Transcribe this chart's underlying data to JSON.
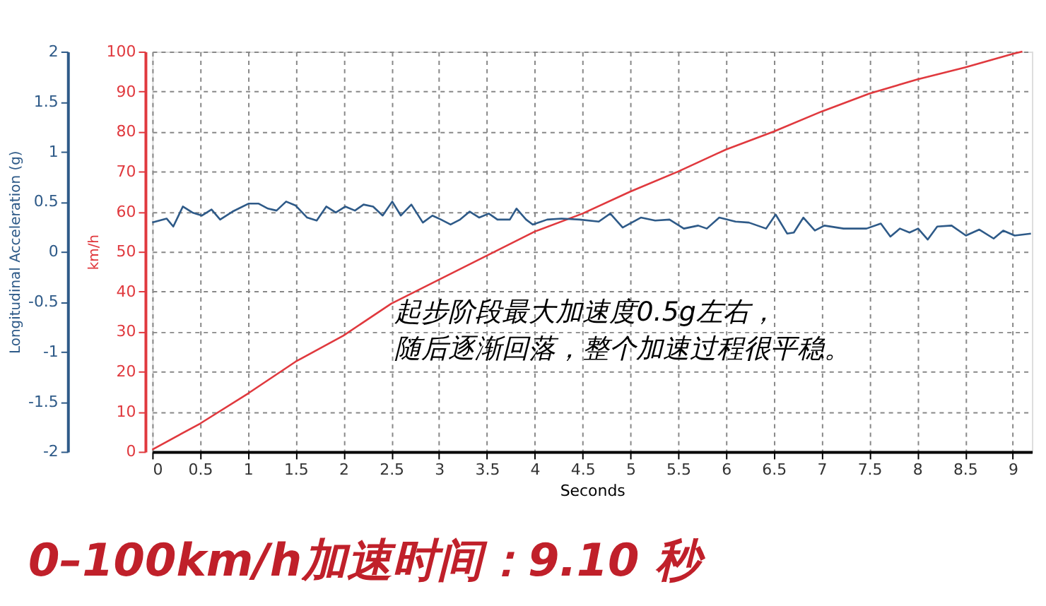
{
  "chart_data": {
    "type": "line",
    "xlabel": "Seconds",
    "ylabel": "km/h",
    "y2label": "Longitudinal Acceleration (g)",
    "xlim": [
      0,
      9.2
    ],
    "xticks": [
      0,
      0.5,
      1,
      1.5,
      2,
      2.5,
      3,
      3.5,
      4,
      4.5,
      5,
      5.5,
      6,
      6.5,
      7,
      7.5,
      8,
      8.5,
      9
    ],
    "ylim": [
      0,
      100
    ],
    "yticks": [
      0,
      10,
      20,
      30,
      40,
      50,
      60,
      70,
      80,
      90,
      100
    ],
    "y2lim": [
      -2,
      2
    ],
    "y2ticks": [
      -2,
      -1.5,
      -1,
      -0.5,
      0,
      0.5,
      1,
      1.5,
      2
    ],
    "grid": true,
    "line_style": "solid",
    "marker": "none",
    "series": [
      {
        "color": "#e0393e",
        "x": [
          0,
          0.5,
          1,
          1.5,
          2,
          2.5,
          3,
          3.5,
          4,
          4.5,
          5,
          5.5,
          6,
          6.5,
          7,
          7.5,
          8,
          8.5,
          9,
          9.1
        ],
        "values": [
          0.5,
          7,
          14.5,
          22.5,
          29,
          37,
          43,
          49,
          55,
          59.5,
          65,
          70,
          75.5,
          80,
          85,
          89.5,
          93,
          96,
          99.4,
          100
        ]
      },
      {
        "color": "#2e5a88",
        "axis": "y2",
        "x": [
          0,
          0.15,
          0.22,
          0.32,
          0.42,
          0.52,
          0.62,
          0.71,
          0.84,
          1.01,
          1.11,
          1.21,
          1.3,
          1.4,
          1.5,
          1.62,
          1.72,
          1.82,
          1.92,
          2.02,
          2.12,
          2.21,
          2.31,
          2.41,
          2.51,
          2.6,
          2.71,
          2.83,
          2.93,
          3.02,
          3.12,
          3.22,
          3.32,
          3.42,
          3.52,
          3.61,
          3.74,
          3.81,
          3.91,
          3.98,
          4.13,
          4.28,
          4.47,
          4.67,
          4.79,
          4.92,
          5.11,
          5.26,
          5.41,
          5.56,
          5.71,
          5.8,
          5.93,
          6.1,
          6.24,
          6.42,
          6.52,
          6.64,
          6.71,
          6.81,
          6.93,
          7.03,
          7.23,
          7.47,
          7.62,
          7.72,
          7.82,
          7.92,
          8.01,
          8.11,
          8.21,
          8.36,
          8.51,
          8.65,
          8.8,
          8.9,
          9.02,
          9.19
        ],
        "values": [
          0.29,
          0.33,
          0.25,
          0.45,
          0.39,
          0.36,
          0.42,
          0.32,
          0.4,
          0.48,
          0.48,
          0.43,
          0.41,
          0.5,
          0.46,
          0.34,
          0.31,
          0.45,
          0.39,
          0.45,
          0.41,
          0.47,
          0.45,
          0.36,
          0.5,
          0.36,
          0.47,
          0.29,
          0.36,
          0.32,
          0.27,
          0.32,
          0.4,
          0.34,
          0.38,
          0.32,
          0.32,
          0.43,
          0.32,
          0.27,
          0.32,
          0.33,
          0.32,
          0.3,
          0.38,
          0.24,
          0.34,
          0.31,
          0.32,
          0.23,
          0.26,
          0.23,
          0.34,
          0.3,
          0.29,
          0.23,
          0.37,
          0.18,
          0.19,
          0.34,
          0.21,
          0.26,
          0.23,
          0.23,
          0.28,
          0.15,
          0.23,
          0.19,
          0.23,
          0.12,
          0.25,
          0.26,
          0.16,
          0.22,
          0.13,
          0.21,
          0.16,
          0.18
        ]
      }
    ],
    "annotations": [
      "起步阶段最大加速度0.5g左右，",
      "随后逐渐回落，整个加速过程很平稳。",
      "0–100km/h加速时间：9.10 秒"
    ]
  }
}
